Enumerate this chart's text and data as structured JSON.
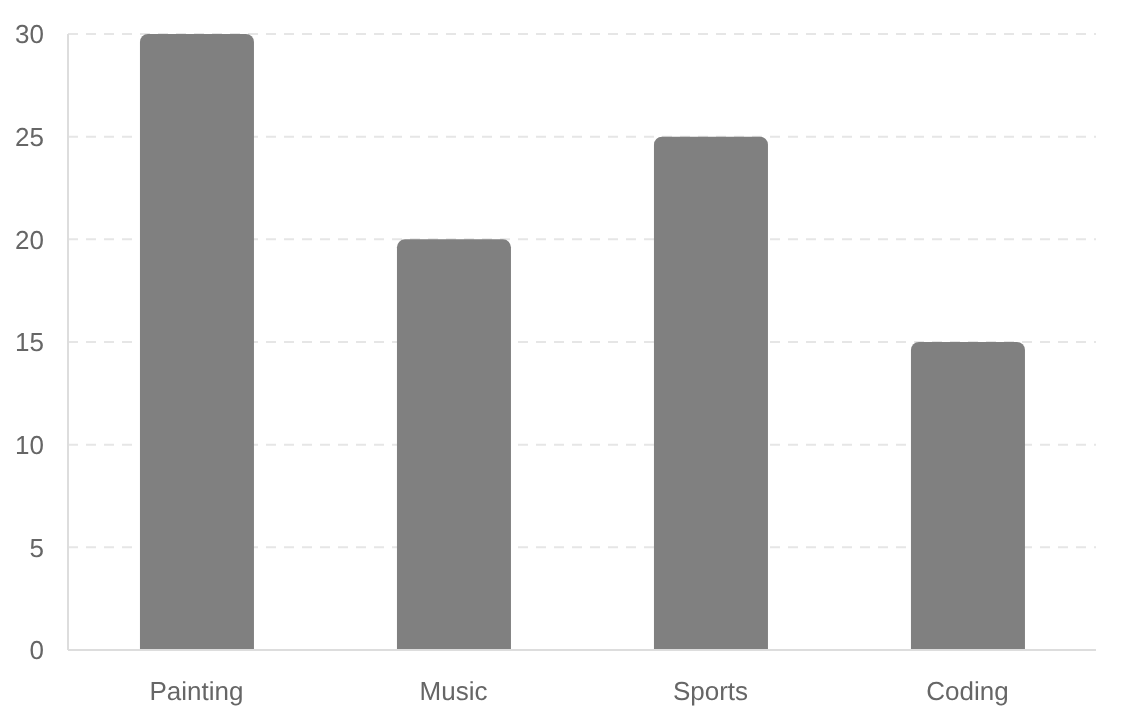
{
  "chart_data": {
    "type": "bar",
    "categories": [
      "Painting",
      "Music",
      "Sports",
      "Coding"
    ],
    "values": [
      30,
      20,
      25,
      15
    ],
    "color": "#808080",
    "ylim": [
      0,
      30
    ],
    "yticks": [
      0,
      5,
      10,
      15,
      20,
      25,
      30
    ],
    "grid": "y"
  }
}
